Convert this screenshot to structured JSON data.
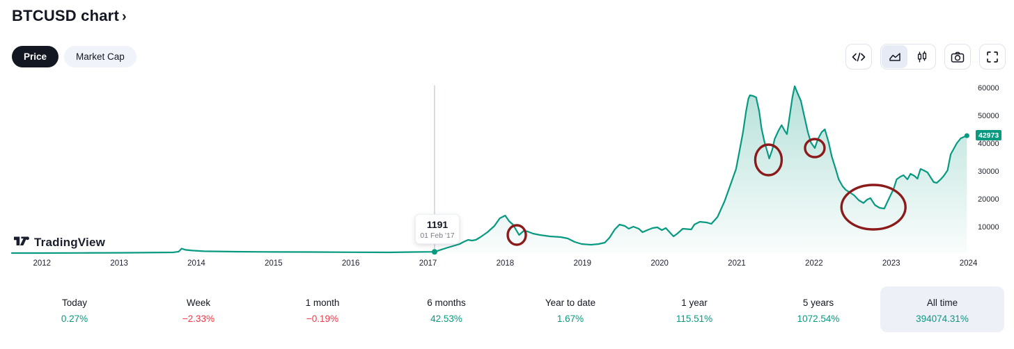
{
  "header": {
    "title": "BTCUSD chart",
    "chevron": "›"
  },
  "toggles": {
    "price": "Price",
    "market_cap": "Market Cap"
  },
  "toolbar": {
    "buttons": [
      "embed-code",
      "area-chart-style",
      "candlestick-style",
      "snapshot-camera",
      "fullscreen"
    ]
  },
  "logo": {
    "text": "TradingView"
  },
  "tooltip": {
    "price": "1191",
    "date": "01 Feb '17"
  },
  "colors": {
    "up": "#089981",
    "down": "#f23645",
    "line": "#089981",
    "annotation": "#8b1a1a"
  },
  "chart_data": {
    "type": "area",
    "title": "BTCUSD price history 2012-2024",
    "xlim": [
      2011.61,
      2024.04
    ],
    "ylim": [
      500,
      61750
    ],
    "x_ticks": [
      2012,
      2013,
      2014,
      2015,
      2016,
      2017,
      2018,
      2019,
      2020,
      2021,
      2022,
      2023,
      2024
    ],
    "y_ticks": [
      10000,
      20000,
      30000,
      40000,
      50000,
      60000
    ],
    "last_price": 42973,
    "crosshair": {
      "t": 2017.085,
      "v": 1191,
      "price_label": "1191",
      "date_label": "01 Feb '17"
    },
    "points": [
      [
        2011.61,
        750
      ],
      [
        2012.0,
        750
      ],
      [
        2012.5,
        800
      ],
      [
        2013.0,
        850
      ],
      [
        2013.3,
        900
      ],
      [
        2013.7,
        1000
      ],
      [
        2013.77,
        1250
      ],
      [
        2013.81,
        2375
      ],
      [
        2013.86,
        1900
      ],
      [
        2013.95,
        1650
      ],
      [
        2014.1,
        1400
      ],
      [
        2014.5,
        1250
      ],
      [
        2015.0,
        1150
      ],
      [
        2015.5,
        1120
      ],
      [
        2016.0,
        1050
      ],
      [
        2016.5,
        1000
      ],
      [
        2016.8,
        1120
      ],
      [
        2017.085,
        1191
      ],
      [
        2017.23,
        2500
      ],
      [
        2017.32,
        3250
      ],
      [
        2017.41,
        4000
      ],
      [
        2017.46,
        4750
      ],
      [
        2017.52,
        5500
      ],
      [
        2017.57,
        5250
      ],
      [
        2017.62,
        5500
      ],
      [
        2017.68,
        6500
      ],
      [
        2017.77,
        8250
      ],
      [
        2017.86,
        10500
      ],
      [
        2017.93,
        13250
      ],
      [
        2018.0,
        14250
      ],
      [
        2018.05,
        12250
      ],
      [
        2018.1,
        11000
      ],
      [
        2018.18,
        7250
      ],
      [
        2018.24,
        8750
      ],
      [
        2018.29,
        8500
      ],
      [
        2018.36,
        7750
      ],
      [
        2018.45,
        7250
      ],
      [
        2018.58,
        6750
      ],
      [
        2018.72,
        6500
      ],
      [
        2018.81,
        6000
      ],
      [
        2018.9,
        4750
      ],
      [
        2018.99,
        4000
      ],
      [
        2019.11,
        3750
      ],
      [
        2019.21,
        4000
      ],
      [
        2019.29,
        4500
      ],
      [
        2019.35,
        6250
      ],
      [
        2019.42,
        9250
      ],
      [
        2019.48,
        11000
      ],
      [
        2019.55,
        10500
      ],
      [
        2019.6,
        9500
      ],
      [
        2019.66,
        10250
      ],
      [
        2019.73,
        9500
      ],
      [
        2019.78,
        8250
      ],
      [
        2019.84,
        9000
      ],
      [
        2019.91,
        9750
      ],
      [
        2019.97,
        10000
      ],
      [
        2020.03,
        9000
      ],
      [
        2020.08,
        9750
      ],
      [
        2020.13,
        8250
      ],
      [
        2020.18,
        6750
      ],
      [
        2020.23,
        7750
      ],
      [
        2020.3,
        9500
      ],
      [
        2020.41,
        9250
      ],
      [
        2020.45,
        11000
      ],
      [
        2020.52,
        12000
      ],
      [
        2020.61,
        11750
      ],
      [
        2020.67,
        11250
      ],
      [
        2020.75,
        13750
      ],
      [
        2020.84,
        19250
      ],
      [
        2020.93,
        26250
      ],
      [
        2020.99,
        31000
      ],
      [
        2021.03,
        36750
      ],
      [
        2021.08,
        44250
      ],
      [
        2021.12,
        51750
      ],
      [
        2021.15,
        56250
      ],
      [
        2021.17,
        57500
      ],
      [
        2021.21,
        57250
      ],
      [
        2021.25,
        56750
      ],
      [
        2021.29,
        51750
      ],
      [
        2021.32,
        45500
      ],
      [
        2021.36,
        40500
      ],
      [
        2021.4,
        36750
      ],
      [
        2021.42,
        34750
      ],
      [
        2021.46,
        38000
      ],
      [
        2021.49,
        41750
      ],
      [
        2021.54,
        44750
      ],
      [
        2021.58,
        46750
      ],
      [
        2021.62,
        44750
      ],
      [
        2021.65,
        43500
      ],
      [
        2021.68,
        49250
      ],
      [
        2021.72,
        56750
      ],
      [
        2021.75,
        60750
      ],
      [
        2021.79,
        58000
      ],
      [
        2021.83,
        55500
      ],
      [
        2021.87,
        50500
      ],
      [
        2021.92,
        44250
      ],
      [
        2021.96,
        40500
      ],
      [
        2022.01,
        38500
      ],
      [
        2022.05,
        41750
      ],
      [
        2022.1,
        44250
      ],
      [
        2022.14,
        45250
      ],
      [
        2022.19,
        40500
      ],
      [
        2022.23,
        35500
      ],
      [
        2022.28,
        31000
      ],
      [
        2022.32,
        27250
      ],
      [
        2022.37,
        24750
      ],
      [
        2022.41,
        23500
      ],
      [
        2022.48,
        22250
      ],
      [
        2022.52,
        21500
      ],
      [
        2022.58,
        19750
      ],
      [
        2022.64,
        18750
      ],
      [
        2022.69,
        20000
      ],
      [
        2022.73,
        20500
      ],
      [
        2022.79,
        18000
      ],
      [
        2022.85,
        17000
      ],
      [
        2022.91,
        16750
      ],
      [
        2022.96,
        19750
      ],
      [
        2023.03,
        23750
      ],
      [
        2023.07,
        27250
      ],
      [
        2023.12,
        28250
      ],
      [
        2023.16,
        28750
      ],
      [
        2023.21,
        27250
      ],
      [
        2023.25,
        29250
      ],
      [
        2023.3,
        28500
      ],
      [
        2023.34,
        27500
      ],
      [
        2023.38,
        31000
      ],
      [
        2023.42,
        30500
      ],
      [
        2023.47,
        29750
      ],
      [
        2023.51,
        28000
      ],
      [
        2023.55,
        26250
      ],
      [
        2023.59,
        26000
      ],
      [
        2023.64,
        27250
      ],
      [
        2023.68,
        28500
      ],
      [
        2023.73,
        30500
      ],
      [
        2023.77,
        36250
      ],
      [
        2023.82,
        38750
      ],
      [
        2023.85,
        40250
      ],
      [
        2023.9,
        42000
      ],
      [
        2023.94,
        42500
      ],
      [
        2023.98,
        42973
      ]
    ],
    "annotations": [
      {
        "t": 2018.15,
        "v": 7250,
        "rx": 13,
        "ry": 14
      },
      {
        "t": 2021.41,
        "v": 34250,
        "rx": 19,
        "ry": 22
      },
      {
        "t": 2022.01,
        "v": 38500,
        "rx": 14,
        "ry": 13
      },
      {
        "t": 2022.77,
        "v": 17250,
        "rx": 46,
        "ry": 32
      }
    ]
  },
  "stats": [
    {
      "label": "Today",
      "value": "0.27%",
      "direction": "up",
      "highlight": false
    },
    {
      "label": "Week",
      "value": "−2.33%",
      "direction": "down",
      "highlight": false
    },
    {
      "label": "1 month",
      "value": "−0.19%",
      "direction": "down",
      "highlight": false
    },
    {
      "label": "6 months",
      "value": "42.53%",
      "direction": "up",
      "highlight": false
    },
    {
      "label": "Year to date",
      "value": "1.67%",
      "direction": "up",
      "highlight": false
    },
    {
      "label": "1 year",
      "value": "115.51%",
      "direction": "up",
      "highlight": false
    },
    {
      "label": "5 years",
      "value": "1072.54%",
      "direction": "up",
      "highlight": false
    },
    {
      "label": "All time",
      "value": "394074.31%",
      "direction": "up",
      "highlight": true
    }
  ]
}
